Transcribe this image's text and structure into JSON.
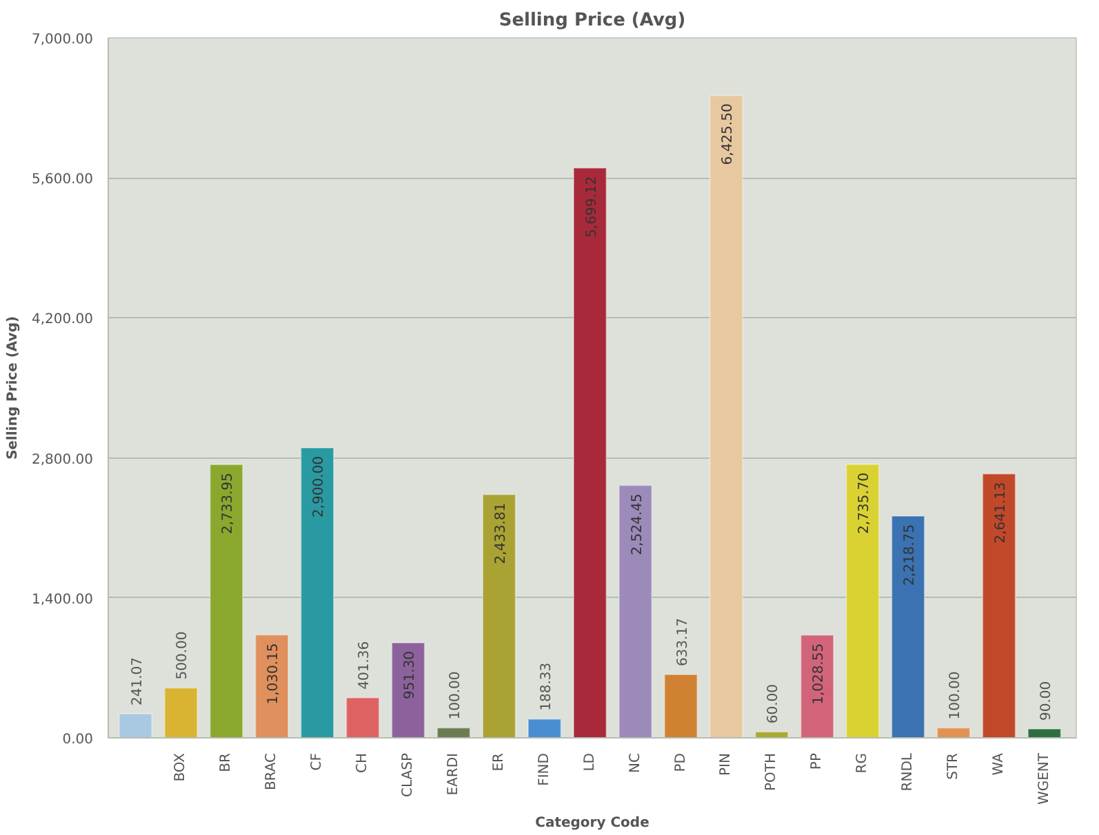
{
  "chart_data": {
    "type": "bar",
    "title": "Selling Price (Avg)",
    "xlabel": "Category Code",
    "ylabel": "Selling Price (Avg)",
    "categories": [
      null,
      "BOX",
      "BR",
      "BRAC",
      "CF",
      "CH",
      "CLASP",
      "EARDI",
      "ER",
      "FIND",
      "LD",
      "NC",
      "PD",
      "PIN",
      "POTH",
      "PP",
      "RG",
      "RNDL",
      "STR",
      "WA",
      "WGENT"
    ],
    "values": [
      241.07,
      500.0,
      2733.95,
      1030.15,
      2900.0,
      401.36,
      951.3,
      100.0,
      2433.81,
      188.33,
      5699.12,
      2524.45,
      633.17,
      6425.5,
      60.0,
      1028.55,
      2735.7,
      2218.75,
      100.0,
      2641.13,
      90.0
    ],
    "value_labels": [
      "241.07",
      "500.00",
      "2,733.95",
      "1,030.15",
      "2,900.00",
      "401.36",
      "951.30",
      "100.00",
      "2,433.81",
      "188.33",
      "5,699.12",
      "2,524.45",
      "633.17",
      "6,425.50",
      "60.00",
      "1,028.55",
      "2,735.70",
      "2,218.75",
      "100.00",
      "2,641.13",
      "90.00"
    ],
    "colors": [
      "#a9c8e2",
      "#d8b432",
      "#8aa82e",
      "#e0905c",
      "#2a9aa2",
      "#de6264",
      "#8c629c",
      "#6c7c52",
      "#aaa232",
      "#4a8ed2",
      "#a82a3a",
      "#9c8aba",
      "#d08232",
      "#e8c8a0",
      "#aaaa32",
      "#d2647a",
      "#dad232",
      "#3a72b2",
      "#e29252",
      "#c2482a",
      "#2e6e42"
    ],
    "ylim": [
      0,
      7000
    ],
    "yticks": [
      {
        "value": 0,
        "label": "0.00"
      },
      {
        "value": 1400,
        "label": "1,400.00"
      },
      {
        "value": 2800,
        "label": "2,800.00"
      },
      {
        "value": 4200,
        "label": "4,200.00"
      },
      {
        "value": 5600,
        "label": "5,600.00"
      },
      {
        "value": 7000,
        "label": "7,000.00"
      }
    ],
    "grid": "y"
  }
}
